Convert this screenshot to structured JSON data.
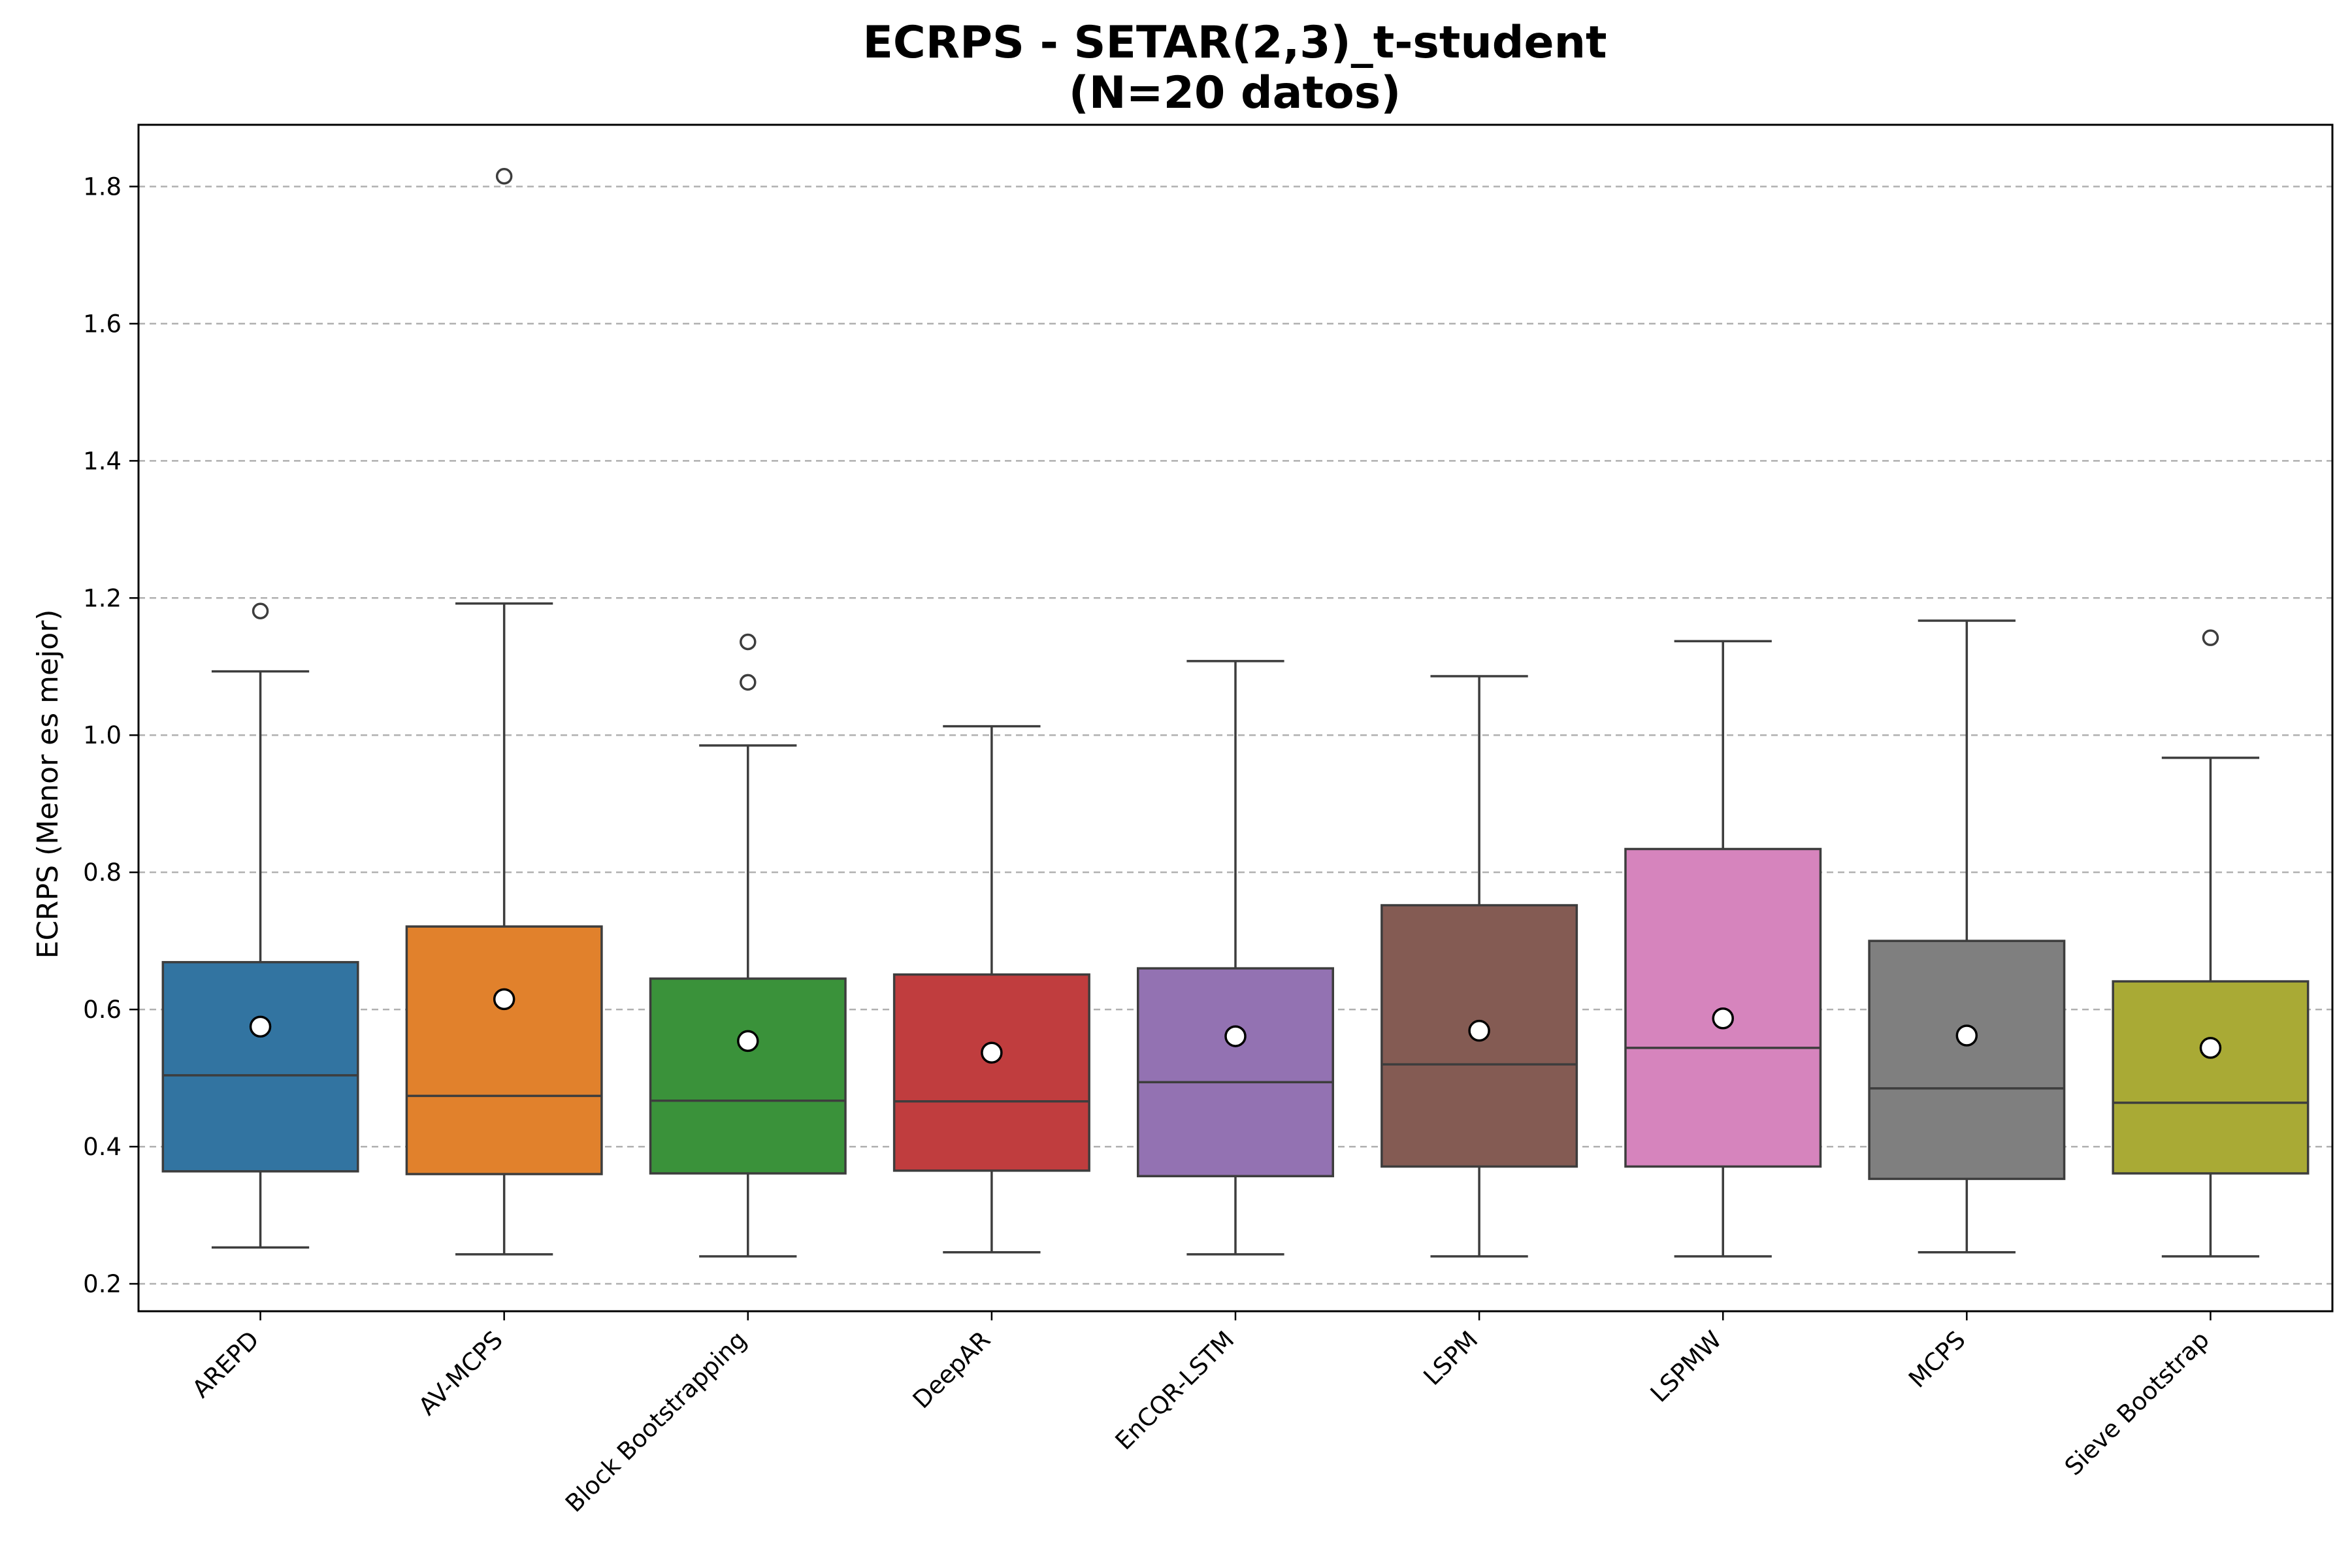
{
  "chart_data": {
    "type": "box",
    "title": "ECRPS - SETAR(2,3)_t-student",
    "subtitle": "(N=20 datos)",
    "xlabel": "",
    "ylabel": "ECRPS (Menor es mejor)",
    "ylim": [
      0.16,
      1.89
    ],
    "yticks": [
      0.2,
      0.4,
      0.6,
      0.8,
      1.0,
      1.2,
      1.4,
      1.6,
      1.8
    ],
    "ytick_labels": [
      "0.2",
      "0.4",
      "0.6",
      "0.8",
      "1.0",
      "1.2",
      "1.4",
      "1.6",
      "1.8"
    ],
    "grid": "horizontal dashed",
    "legend": "none",
    "categories": [
      "AREPD",
      "AV-MCPS",
      "Block Bootstrapping",
      "DeepAR",
      "EnCQR-LSTM",
      "LSPM",
      "LSPMW",
      "MCPS",
      "Sieve Bootstrap"
    ],
    "series": [
      {
        "category": "AREPD",
        "color": "#3274a1",
        "whisker_low": 0.253,
        "q1": 0.364,
        "median": 0.504,
        "q3": 0.669,
        "whisker_high": 1.093,
        "mean": 0.575,
        "outliers": [
          1.181
        ]
      },
      {
        "category": "AV-MCPS",
        "color": "#e1812c",
        "whisker_low": 0.243,
        "q1": 0.36,
        "median": 0.474,
        "q3": 0.721,
        "whisker_high": 1.192,
        "mean": 0.615,
        "outliers": [
          1.815
        ]
      },
      {
        "category": "Block Bootstrapping",
        "color": "#3a923a",
        "whisker_low": 0.24,
        "q1": 0.361,
        "median": 0.467,
        "q3": 0.645,
        "whisker_high": 0.985,
        "mean": 0.554,
        "outliers": [
          1.077,
          1.136
        ]
      },
      {
        "category": "DeepAR",
        "color": "#c03d3e",
        "whisker_low": 0.246,
        "q1": 0.365,
        "median": 0.466,
        "q3": 0.651,
        "whisker_high": 1.013,
        "mean": 0.537,
        "outliers": []
      },
      {
        "category": "EnCQR-LSTM",
        "color": "#9372b2",
        "whisker_low": 0.243,
        "q1": 0.357,
        "median": 0.494,
        "q3": 0.66,
        "whisker_high": 1.108,
        "mean": 0.561,
        "outliers": []
      },
      {
        "category": "LSPM",
        "color": "#845b53",
        "whisker_low": 0.24,
        "q1": 0.371,
        "median": 0.52,
        "q3": 0.752,
        "whisker_high": 1.086,
        "mean": 0.569,
        "outliers": []
      },
      {
        "category": "LSPMW",
        "color": "#d684bd",
        "whisker_low": 0.24,
        "q1": 0.371,
        "median": 0.544,
        "q3": 0.834,
        "whisker_high": 1.137,
        "mean": 0.587,
        "outliers": []
      },
      {
        "category": "MCPS",
        "color": "#7f7f7f",
        "whisker_low": 0.246,
        "q1": 0.353,
        "median": 0.485,
        "q3": 0.7,
        "whisker_high": 1.167,
        "mean": 0.562,
        "outliers": []
      },
      {
        "category": "Sieve Bootstrap",
        "color": "#a9aa35",
        "whisker_low": 0.24,
        "q1": 0.361,
        "median": 0.464,
        "q3": 0.641,
        "whisker_high": 0.967,
        "mean": 0.544,
        "outliers": [
          1.142
        ]
      }
    ]
  }
}
